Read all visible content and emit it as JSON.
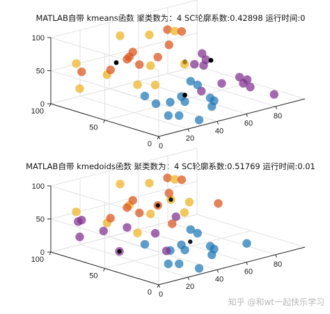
{
  "palette": {
    "blue": "#1f77b4",
    "orange": "#d95319",
    "yellow": "#edb120",
    "purple": "#7e2f8e",
    "black": "#000000"
  },
  "watermark": "知乎 @和wt一起快乐学习",
  "chart_data": [
    {
      "type": "scatter3d",
      "title": "MATLAB自带 kmeans函数  聚类数为：4  SC轮廓系数:0.42898 运行时间:0",
      "x_ticks": [
        "0",
        "20",
        "40",
        "60",
        "80"
      ],
      "y_ticks": [
        "0",
        "50",
        "100"
      ],
      "z_ticks": [
        "0",
        "50",
        "100"
      ],
      "xlim": [
        0,
        100
      ],
      "ylim": [
        0,
        100
      ],
      "zlim": [
        0,
        100
      ],
      "grid": true,
      "series": [
        {
          "color": "blue",
          "points": [
            [
              20,
              40,
              30
            ],
            [
              25,
              15,
              10
            ],
            [
              30,
              30,
              20
            ],
            [
              35,
              10,
              0
            ],
            [
              40,
              5,
              20
            ],
            [
              45,
              40,
              15
            ],
            [
              50,
              20,
              20
            ],
            [
              55,
              45,
              30
            ],
            [
              40,
              30,
              15
            ],
            [
              25,
              25,
              5
            ],
            [
              45,
              25,
              40
            ],
            [
              60,
              30,
              5
            ],
            [
              35,
              50,
              5
            ]
          ]
        },
        {
          "color": "orange",
          "points": [
            [
              10,
              85,
              50
            ],
            [
              15,
              65,
              60
            ],
            [
              30,
              70,
              65
            ],
            [
              40,
              55,
              70
            ],
            [
              45,
              85,
              60
            ],
            [
              55,
              65,
              75
            ],
            [
              60,
              60,
              95
            ],
            [
              65,
              80,
              85
            ],
            [
              50,
              95,
              45
            ],
            [
              20,
              45,
              75
            ]
          ]
        },
        {
          "color": "yellow",
          "points": [
            [
              10,
              90,
              60
            ],
            [
              20,
              75,
              45
            ],
            [
              5,
              80,
              30
            ],
            [
              15,
              40,
              50
            ],
            [
              25,
              10,
              90
            ],
            [
              35,
              55,
              60
            ],
            [
              40,
              90,
              85
            ],
            [
              60,
              90,
              75
            ],
            [
              70,
              80,
              80
            ],
            [
              5,
              10,
              70
            ]
          ]
        },
        {
          "color": "purple",
          "points": [
            [
              70,
              20,
              40
            ],
            [
              80,
              30,
              20
            ],
            [
              90,
              40,
              15
            ],
            [
              75,
              60,
              35
            ],
            [
              65,
              55,
              45
            ],
            [
              85,
              75,
              40
            ],
            [
              90,
              15,
              5
            ],
            [
              95,
              85,
              20
            ],
            [
              55,
              35,
              20
            ],
            [
              80,
              50,
              10
            ],
            [
              70,
              10,
              30
            ]
          ]
        },
        {
          "color": "black",
          "points": [
            [
              30,
              80,
              55
            ],
            [
              40,
              30,
              75
            ],
            [
              80,
              60,
              40
            ],
            [
              40,
              30,
              25
            ]
          ]
        }
      ]
    },
    {
      "type": "scatter3d",
      "title": "MATLAB自带 kmedoids函数  聚类数为：4  SC轮廓系数:0.51769 运行时间:0.01",
      "x_ticks": [
        "0",
        "20",
        "40",
        "60",
        "80"
      ],
      "y_ticks": [
        "0",
        "50",
        "100"
      ],
      "z_ticks": [
        "0",
        "50",
        "100"
      ],
      "xlim": [
        0,
        100
      ],
      "ylim": [
        0,
        100
      ],
      "zlim": [
        0,
        100
      ],
      "grid": true,
      "series": [
        {
          "color": "blue",
          "points": [
            [
              20,
              40,
              30
            ],
            [
              25,
              15,
              10
            ],
            [
              30,
              30,
              20
            ],
            [
              35,
              10,
              0
            ],
            [
              40,
              5,
              20
            ],
            [
              45,
              40,
              15
            ],
            [
              50,
              20,
              20
            ],
            [
              55,
              45,
              30
            ],
            [
              40,
              30,
              15
            ],
            [
              25,
              25,
              5
            ],
            [
              45,
              25,
              40
            ],
            [
              60,
              30,
              5
            ],
            [
              75,
              20,
              10
            ]
          ]
        },
        {
          "color": "orange",
          "points": [
            [
              20,
              45,
              75
            ],
            [
              30,
              70,
              65
            ],
            [
              45,
              85,
              60
            ],
            [
              40,
              55,
              70
            ],
            [
              55,
              65,
              75
            ],
            [
              60,
              60,
              95
            ],
            [
              65,
              80,
              85
            ],
            [
              15,
              65,
              60
            ],
            [
              35,
              35,
              55
            ],
            [
              85,
              60,
              45
            ]
          ]
        },
        {
          "color": "yellow",
          "points": [
            [
              10,
              90,
              60
            ],
            [
              20,
              75,
              45
            ],
            [
              15,
              40,
              50
            ],
            [
              25,
              10,
              90
            ],
            [
              35,
              55,
              60
            ],
            [
              40,
              90,
              85
            ],
            [
              60,
              90,
              75
            ],
            [
              70,
              80,
              80
            ],
            [
              50,
              95,
              45
            ],
            [
              60,
              70,
              60
            ],
            [
              80,
              80,
              40
            ]
          ]
        },
        {
          "color": "purple",
          "points": [
            [
              5,
              10,
              70
            ],
            [
              10,
              85,
              50
            ],
            [
              5,
              80,
              30
            ],
            [
              15,
              95,
              40
            ],
            [
              25,
              85,
              25
            ],
            [
              30,
              70,
              35
            ],
            [
              10,
              50,
              20
            ],
            [
              45,
              45,
              55
            ],
            [
              20,
              20,
              30
            ]
          ]
        },
        {
          "color": "black",
          "medoid": true,
          "points": [
            [
              40,
              55,
              70
            ],
            [
              40,
              25,
              30
            ],
            [
              60,
              70,
              60
            ],
            [
              10,
              50,
              20
            ]
          ]
        }
      ]
    }
  ]
}
